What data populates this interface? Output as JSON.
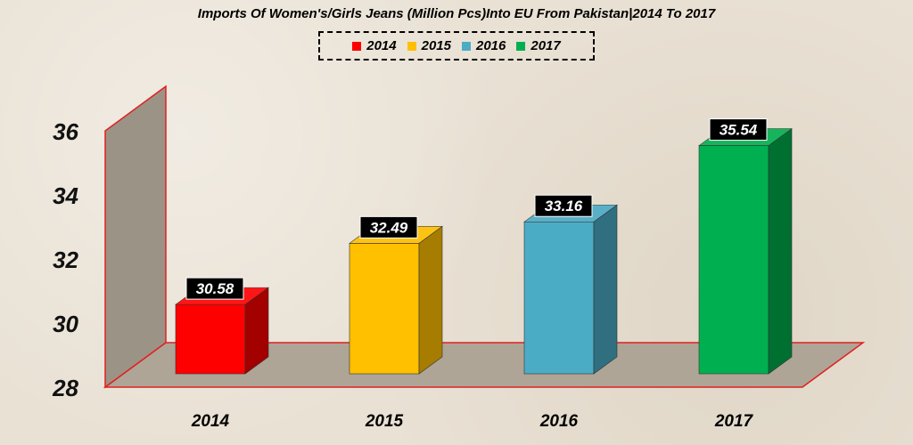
{
  "chart_data": {
    "type": "bar",
    "title": "Imports Of Women's/Girls Jeans (Million Pcs)Into EU From Pakistan|2014 To 2017",
    "categories": [
      "2014",
      "2015",
      "2016",
      "2017"
    ],
    "values": [
      30.58,
      32.49,
      33.16,
      35.54
    ],
    "value_labels": [
      "30.58",
      "32.49",
      "33.16",
      "35.54"
    ],
    "colors": [
      "#ff0000",
      "#ffc000",
      "#4bacc6",
      "#00b050"
    ],
    "side_colors": [
      "#a30000",
      "#a67d00",
      "#2f6f80",
      "#007030"
    ],
    "legend": [
      "2014",
      "2015",
      "2016",
      "2017"
    ],
    "ylim": [
      28,
      36
    ],
    "yticks": [
      "28",
      "30",
      "32",
      "34",
      "36"
    ],
    "grid": false,
    "legend_position": "top"
  }
}
